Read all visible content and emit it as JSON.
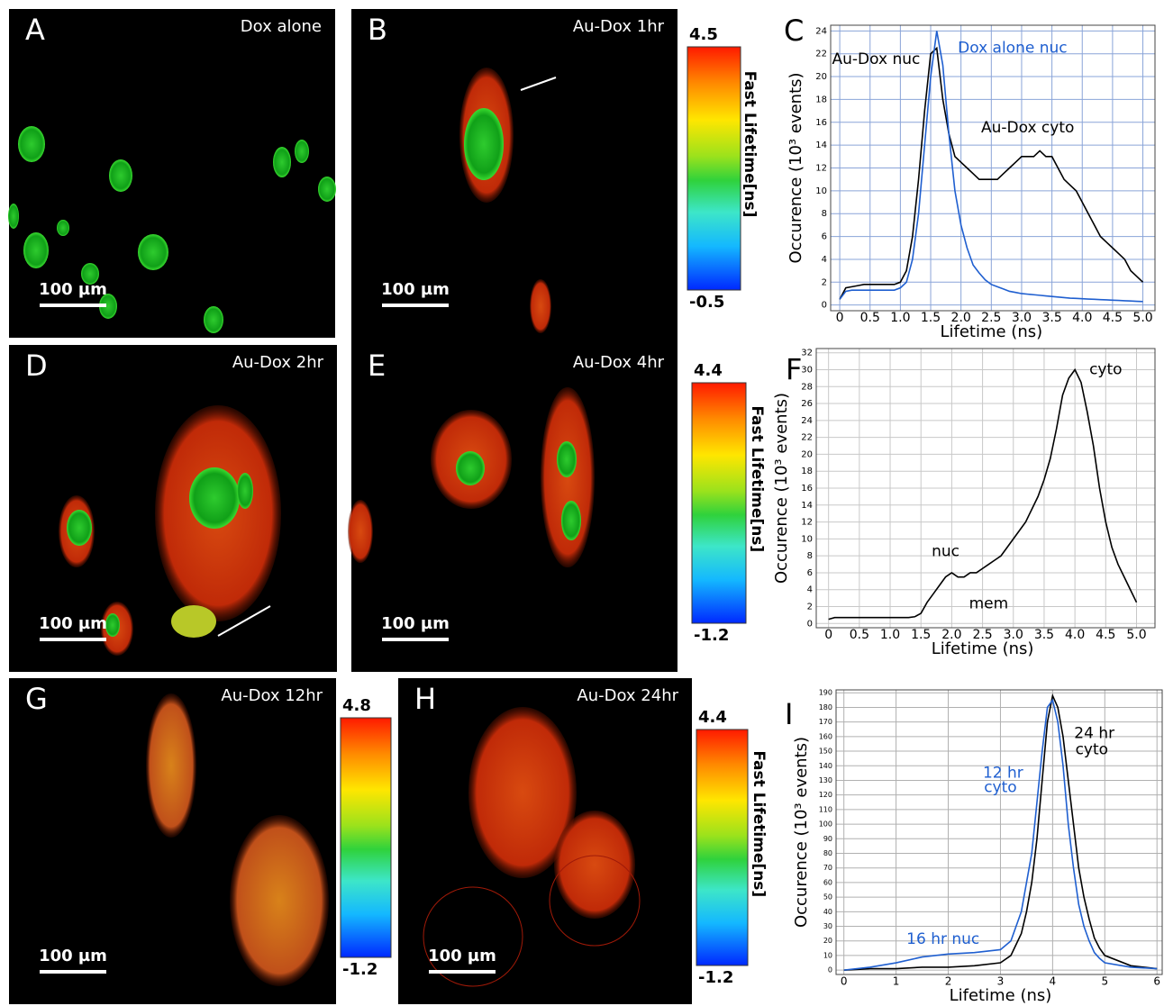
{
  "panels": [
    {
      "letter": "A",
      "label": "Dox alone",
      "scale_bar": "100 µm"
    },
    {
      "letter": "B",
      "label": "Au-Dox 1hr",
      "scale_bar": "100 µm"
    },
    {
      "letter": "D",
      "label": "Au-Dox 2hr",
      "scale_bar": "100 µm"
    },
    {
      "letter": "E",
      "label": "Au-Dox 4hr",
      "scale_bar": "100 µm"
    },
    {
      "letter": "G",
      "label": "Au-Dox 12hr",
      "scale_bar": "100 µm"
    },
    {
      "letter": "H",
      "label": "Au-Dox 24hr",
      "scale_bar": "100 µm"
    }
  ],
  "colorbars": [
    {
      "max": 4.5,
      "min": -0.5,
      "title": "Fast Lifetime[ns]"
    },
    {
      "max": 4.4,
      "min": -1.2,
      "title": "Fast Lifetime[ns]"
    },
    {
      "max": 4.8,
      "min": -1.2
    },
    {
      "max": 4.4,
      "min": -1.2,
      "title": "Fast Lifetime[ns]"
    }
  ],
  "chart_data": [
    {
      "type": "line",
      "panel": "C",
      "xlabel": "Lifetime (ns)",
      "ylabel": "Occurence (10³ events)",
      "x": [
        0,
        0.1,
        0.2,
        0.3,
        0.4,
        0.5,
        0.6,
        0.7,
        0.8,
        0.9,
        1,
        1.1,
        1.2,
        1.3,
        1.4,
        1.5,
        1.6,
        1.7,
        1.8,
        1.9,
        2,
        2.1,
        2.2,
        2.3,
        2.4,
        2.5,
        2.6,
        2.7,
        2.8,
        2.9,
        3,
        3.1,
        3.2,
        3.3,
        3.4,
        3.5,
        3.6,
        3.7,
        3.8,
        3.9,
        4,
        4.1,
        4.2,
        4.3,
        4.4,
        4.5,
        4.6,
        4.7,
        4.8,
        4.9,
        5
      ],
      "xlim": [
        -0.15,
        5.2
      ],
      "ylim": [
        -0.5,
        24.5
      ],
      "xticks": [
        0,
        0.5,
        {
          "value": 1,
          "label": "1.0"
        },
        1.5,
        {
          "value": 2,
          "label": "2.0"
        },
        2.5,
        {
          "value": 3,
          "label": "3.0"
        },
        3.5,
        {
          "value": 4,
          "label": "4.0"
        },
        4.5,
        {
          "value": 5,
          "label": "5.0"
        }
      ],
      "yticks": [
        0,
        2,
        4,
        6,
        8,
        10,
        12,
        14,
        16,
        18,
        20,
        22,
        24
      ],
      "grid": true,
      "grid_color": "#8aa4d8",
      "series": [
        {
          "color": "#000000",
          "values": [
            0.5,
            1.5,
            1.6,
            1.7,
            1.8,
            1.8,
            1.8,
            1.8,
            1.8,
            1.8,
            2,
            3,
            6,
            11,
            17,
            22,
            22.5,
            18,
            15,
            13,
            12.5,
            12,
            11.5,
            11,
            11,
            11,
            11,
            11.5,
            12,
            12.5,
            13,
            13,
            13,
            13.5,
            13,
            13,
            12,
            11,
            10.5,
            10,
            9,
            8,
            7,
            6,
            5.5,
            5,
            4.5,
            4,
            3,
            2.5,
            2
          ]
        },
        {
          "color": "#1f5fd0",
          "values": [
            0.5,
            1.2,
            1.3,
            1.3,
            1.3,
            1.3,
            1.3,
            1.3,
            1.3,
            1.3,
            1.5,
            2,
            4,
            8,
            14,
            20,
            24,
            21,
            15,
            10,
            7,
            5,
            3.5,
            2.8,
            2.2,
            1.8,
            1.6,
            1.4,
            1.2,
            1.1,
            1,
            0.95,
            0.9,
            0.85,
            0.8,
            0.75,
            0.7,
            0.65,
            0.6,
            0.58,
            0.55,
            0.52,
            0.5,
            0.47,
            0.45,
            0.42,
            0.4,
            0.37,
            0.35,
            0.32,
            0.3
          ]
        }
      ],
      "annotations": [
        {
          "text": "Au-Dox nuc",
          "color": "#000000"
        },
        {
          "text": "Dox alone nuc",
          "color": "#1f5fd0"
        },
        {
          "text": "Au-Dox cyto",
          "color": "#000000"
        }
      ]
    },
    {
      "type": "line",
      "panel": "F",
      "xlabel": "Lifetime (ns)",
      "ylabel": "Occurence (10³ events)",
      "x": [
        0,
        0.1,
        0.2,
        0.3,
        0.4,
        0.5,
        0.6,
        0.7,
        0.8,
        0.9,
        1,
        1.1,
        1.2,
        1.3,
        1.4,
        1.5,
        1.6,
        1.7,
        1.8,
        1.9,
        2,
        2.1,
        2.2,
        2.3,
        2.4,
        2.5,
        2.6,
        2.7,
        2.8,
        2.9,
        3,
        3.1,
        3.2,
        3.3,
        3.4,
        3.5,
        3.6,
        3.7,
        3.8,
        3.9,
        4,
        4.1,
        4.2,
        4.3,
        4.4,
        4.5,
        4.6,
        4.7,
        4.8,
        4.9,
        5
      ],
      "xlim": [
        -0.2,
        5.3
      ],
      "ylim": [
        -0.5,
        32.5
      ],
      "xticks": [
        0,
        0.5,
        {
          "value": 1,
          "label": "1.0"
        },
        1.5,
        {
          "value": 2,
          "label": "2.0"
        },
        2.5,
        {
          "value": 3,
          "label": "3.0"
        },
        3.5,
        {
          "value": 4,
          "label": "4.0"
        },
        4.5,
        {
          "value": 5,
          "label": "5.0"
        }
      ],
      "yticks": [
        0,
        2,
        4,
        6,
        8,
        10,
        12,
        14,
        16,
        18,
        20,
        22,
        24,
        26,
        28,
        30,
        32
      ],
      "grid": true,
      "grid_color": "#c8c8c8",
      "series": [
        {
          "color": "#000000",
          "values": [
            0.5,
            0.7,
            0.7,
            0.7,
            0.7,
            0.7,
            0.7,
            0.7,
            0.7,
            0.7,
            0.7,
            0.7,
            0.7,
            0.7,
            0.8,
            1.2,
            2.5,
            3.5,
            4.5,
            5.5,
            6,
            5.5,
            5.5,
            6,
            6,
            6.5,
            7,
            7.5,
            8,
            9,
            10,
            11,
            12,
            13.5,
            15,
            17,
            19.5,
            23,
            27,
            29,
            30,
            28.5,
            25,
            21,
            16,
            12,
            9,
            7,
            5.5,
            4,
            2.5
          ]
        }
      ],
      "annotations": [
        {
          "text": "nuc",
          "color": "#000000"
        },
        {
          "text": "mem",
          "color": "#000000"
        },
        {
          "text": "cyto",
          "color": "#000000"
        }
      ]
    },
    {
      "type": "line",
      "panel": "I",
      "xlabel": "Lifetime (ns)",
      "ylabel": "Occurence (10³ events)",
      "x": [
        0,
        0.5,
        1,
        1.5,
        2,
        2.5,
        3,
        3.2,
        3.4,
        3.5,
        3.6,
        3.7,
        3.8,
        3.9,
        4,
        4.1,
        4.2,
        4.3,
        4.4,
        4.5,
        4.6,
        4.7,
        4.8,
        4.9,
        5,
        5.5,
        6
      ],
      "xlim": [
        -0.15,
        6.1
      ],
      "ylim": [
        -3,
        192
      ],
      "xticks": [
        0,
        1,
        2,
        3,
        4,
        5,
        6
      ],
      "yticks": [
        0,
        10,
        20,
        30,
        40,
        50,
        60,
        70,
        80,
        90,
        100,
        110,
        120,
        130,
        140,
        150,
        160,
        170,
        180,
        190
      ],
      "grid": true,
      "grid_color": "#b0b0b0",
      "series": [
        {
          "color": "#000000",
          "values": [
            0,
            1,
            1,
            2,
            2,
            3,
            5,
            10,
            25,
            40,
            60,
            90,
            130,
            170,
            188,
            180,
            160,
            130,
            100,
            70,
            50,
            35,
            22,
            15,
            10,
            3,
            1
          ]
        },
        {
          "color": "#1f5fd0",
          "values": [
            0,
            2,
            5,
            9,
            11,
            12,
            14,
            20,
            40,
            60,
            80,
            115,
            150,
            180,
            185,
            170,
            140,
            100,
            70,
            45,
            30,
            20,
            12,
            8,
            5,
            2,
            1
          ]
        }
      ],
      "annotations": [
        {
          "text": "16 hr nuc",
          "color": "#1f5fd0"
        },
        {
          "text": "12 hr",
          "color": "#1f5fd0"
        },
        {
          "text": "cyto",
          "color": "#1f5fd0"
        },
        {
          "text": "24 hr",
          "color": "#000000"
        },
        {
          "text": "cyto",
          "color": "#000000"
        }
      ]
    }
  ]
}
